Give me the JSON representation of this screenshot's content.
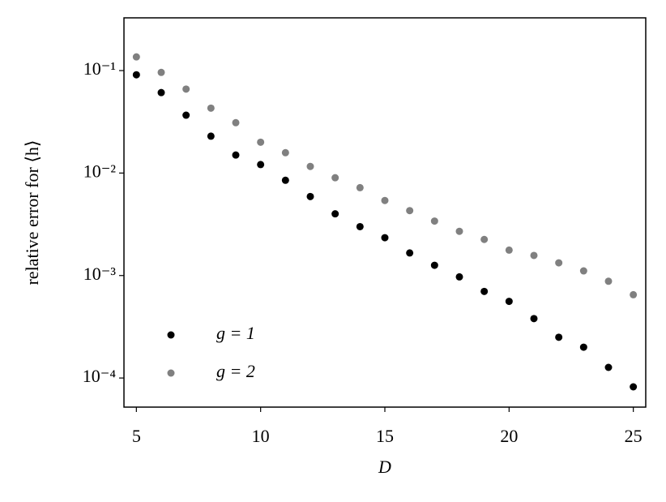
{
  "chart_data": {
    "type": "scatter",
    "xlabel": "D",
    "ylabel": "relative error for ⟨h⟩",
    "x": [
      5,
      6,
      7,
      8,
      9,
      10,
      11,
      12,
      13,
      14,
      15,
      16,
      17,
      18,
      19,
      20,
      21,
      22,
      23,
      24,
      25
    ],
    "series": [
      {
        "name": "g = 1",
        "color": "#000000",
        "values": [
          0.091,
          0.061,
          0.0367,
          0.0229,
          0.015,
          0.0121,
          0.0085,
          0.0059,
          0.004,
          0.003,
          0.00234,
          0.00166,
          0.00126,
          0.00097,
          0.0007,
          0.00056,
          0.00038,
          0.00025,
          0.0002,
          0.000127,
          8.2e-05
        ]
      },
      {
        "name": "g = 2",
        "color": "#808080",
        "values": [
          0.136,
          0.096,
          0.066,
          0.043,
          0.031,
          0.02,
          0.0158,
          0.0116,
          0.009,
          0.0072,
          0.0054,
          0.0043,
          0.0034,
          0.0027,
          0.00225,
          0.00177,
          0.00157,
          0.00133,
          0.00111,
          0.00088,
          0.00065
        ]
      }
    ],
    "xlim": [
      4.5,
      25.5
    ],
    "ylim": [
      5.2e-05,
      0.327
    ],
    "yscale": "log",
    "xticks": [
      5,
      10,
      15,
      20,
      25
    ],
    "yticks": [
      {
        "value": 0.1,
        "label": "10⁻¹"
      },
      {
        "value": 0.01,
        "label": "10⁻²"
      },
      {
        "value": 0.001,
        "label": "10⁻³"
      },
      {
        "value": 0.0001,
        "label": "10⁻⁴"
      }
    ],
    "legend": "lower left"
  }
}
